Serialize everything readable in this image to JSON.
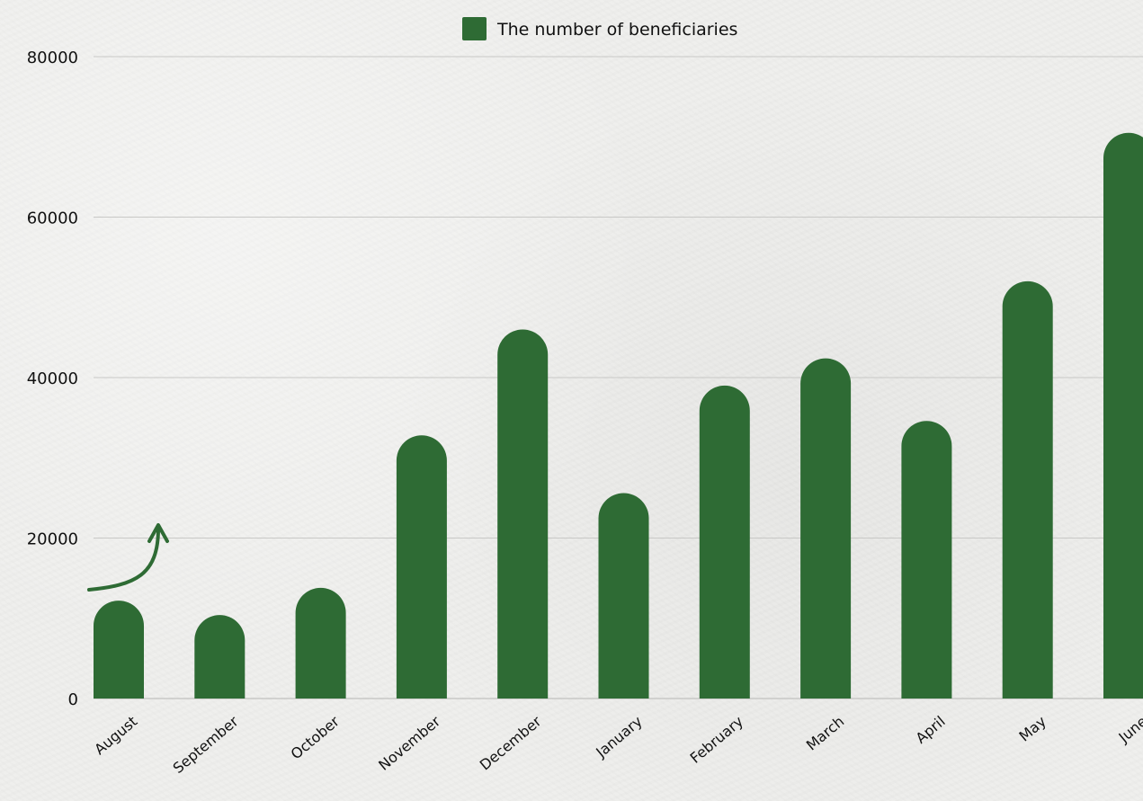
{
  "chart_data": {
    "type": "bar",
    "categories": [
      "August",
      "September",
      "October",
      "November",
      "December",
      "January",
      "February",
      "March",
      "April",
      "May",
      "June"
    ],
    "series": [
      {
        "name": "The number of beneficiaries",
        "values": [
          12200,
          10400,
          13800,
          32800,
          46000,
          25600,
          39000,
          42400,
          34600,
          52000,
          70500
        ],
        "color": "#2e6b34"
      }
    ],
    "ylim": [
      0,
      80000
    ],
    "yticks": [
      0,
      20000,
      40000,
      60000,
      80000
    ],
    "ytick_labels": [
      "0",
      "20000",
      "40000",
      "60000",
      "80000"
    ],
    "grid": true,
    "legend": "top-center",
    "bar_shape": "rounded-top",
    "annotation": "arrow-curved-up",
    "colors": {
      "bar": "#2e6b34",
      "grid": "#c8c8c6",
      "text": "#111111"
    }
  }
}
